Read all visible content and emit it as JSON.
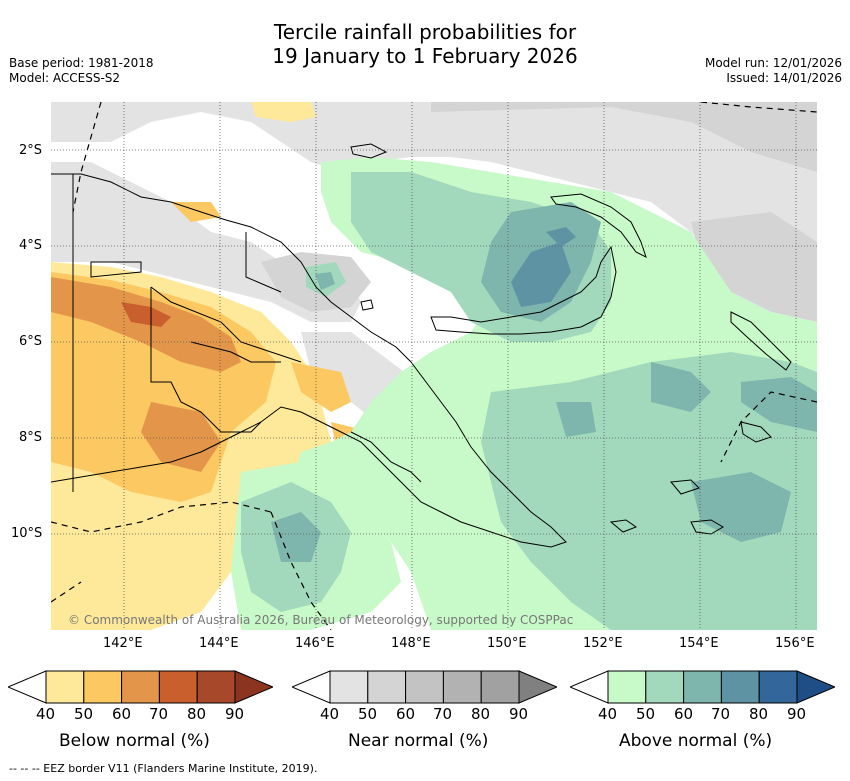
{
  "header": {
    "title_line1": "Tercile rainfall probabilities for",
    "title_line2": "19 January to 1 February 2026",
    "base_period": "Base period: 1981-2018",
    "model": "Model: ACCESS-S2",
    "model_run": "Model run: 12/01/2026",
    "issued": "Issued: 14/01/2026"
  },
  "map": {
    "latitude_labels": [
      "2°S",
      "4°S",
      "6°S",
      "8°S",
      "10°S"
    ],
    "longitude_labels": [
      "142°E",
      "144°E",
      "146°E",
      "148°E",
      "150°E",
      "152°E",
      "154°E",
      "156°E"
    ],
    "copyright": "© Commonwealth of Australia 2026, Bureau of Meteorology, supported by COSPPac"
  },
  "colorbars": [
    {
      "title": "Below normal (%)",
      "ticks": [
        "40",
        "50",
        "60",
        "70",
        "80",
        "90"
      ],
      "colors": [
        "#ffffff",
        "#fee99a",
        "#fbc862",
        "#e3964a",
        "#c85f2d",
        "#a8482a",
        "#8b3520"
      ]
    },
    {
      "title": "Near normal (%)",
      "ticks": [
        "40",
        "50",
        "60",
        "70",
        "80",
        "90"
      ],
      "colors": [
        "#ffffff",
        "#e3e3e3",
        "#d4d4d4",
        "#c3c3c3",
        "#b2b2b2",
        "#a1a1a1",
        "#808080"
      ]
    },
    {
      "title": "Above normal (%)",
      "ticks": [
        "40",
        "50",
        "60",
        "70",
        "80",
        "90"
      ],
      "colors": [
        "#ffffff",
        "#c8fac9",
        "#a2d9bc",
        "#7eb6ad",
        "#5d93a3",
        "#336699",
        "#1f4e86"
      ]
    }
  ],
  "footnote": "--  --  -- EEZ border V11 (Flanders Marine Institute, 2019)."
}
